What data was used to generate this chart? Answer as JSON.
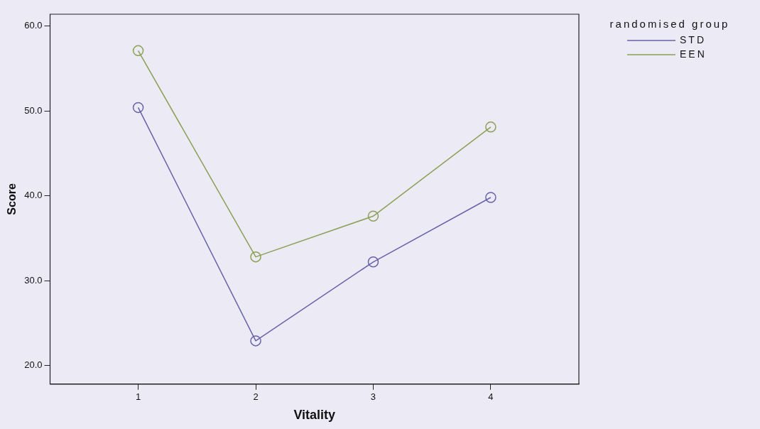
{
  "chart_data": {
    "type": "line",
    "xlabel": "Vitality",
    "ylabel": "Score",
    "legend_title": "randomised group",
    "x": [
      1,
      2,
      3,
      4
    ],
    "series": [
      {
        "name": "STD",
        "color": "#6a62a8",
        "values": [
          50.4,
          22.9,
          32.2,
          39.8
        ]
      },
      {
        "name": "EEN",
        "color": "#8ca055",
        "values": [
          57.1,
          32.8,
          37.6,
          48.1
        ]
      }
    ],
    "xlim": [
      0.25,
      4.75
    ],
    "xticks": [
      1,
      2,
      3,
      4
    ],
    "ylim": [
      17.8,
      61.4
    ],
    "yticks": [
      {
        "value": 20,
        "label": "20.0"
      },
      {
        "value": 30,
        "label": "30.0"
      },
      {
        "value": 40,
        "label": "40.0"
      },
      {
        "value": 50,
        "label": "50.0"
      },
      {
        "value": 60,
        "label": "60.0"
      }
    ],
    "grid": false,
    "legend": "top right",
    "marker": "circle",
    "line_style": "solid"
  }
}
